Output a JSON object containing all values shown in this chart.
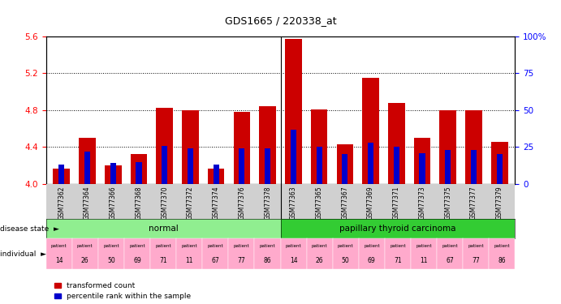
{
  "title": "GDS1665 / 220338_at",
  "samples": [
    "GSM77362",
    "GSM77364",
    "GSM77366",
    "GSM77368",
    "GSM77370",
    "GSM77372",
    "GSM77374",
    "GSM77376",
    "GSM77378",
    "GSM77363",
    "GSM77365",
    "GSM77367",
    "GSM77369",
    "GSM77371",
    "GSM77373",
    "GSM77375",
    "GSM77377",
    "GSM77379"
  ],
  "transformed_count": [
    4.17,
    4.5,
    4.2,
    4.32,
    4.83,
    4.8,
    4.17,
    4.78,
    4.84,
    5.57,
    4.81,
    4.43,
    5.15,
    4.88,
    4.5,
    4.8,
    4.8,
    4.46
  ],
  "percentile_rank_pct": [
    13,
    22,
    14,
    15,
    26,
    24,
    13,
    24,
    24,
    37,
    25,
    20,
    28,
    25,
    21,
    23,
    23,
    20
  ],
  "disease_groups": [
    {
      "label": "normal",
      "start": 0,
      "end": 9,
      "color": "#90ee90"
    },
    {
      "label": "papillary thyroid carcinoma",
      "start": 9,
      "end": 18,
      "color": "#33cc33"
    }
  ],
  "individuals": [
    "14",
    "26",
    "50",
    "69",
    "71",
    "11",
    "67",
    "77",
    "86",
    "14",
    "26",
    "50",
    "69",
    "71",
    "11",
    "67",
    "77",
    "86"
  ],
  "ylim_left": [
    4.0,
    5.6
  ],
  "yticks_left": [
    4.0,
    4.4,
    4.8,
    5.2,
    5.6
  ],
  "ylim_right": [
    0,
    100
  ],
  "yticks_right": [
    0,
    25,
    50,
    75,
    100
  ],
  "bar_color_red": "#cc0000",
  "bar_color_blue": "#0000cc",
  "label_disease_state": "disease state",
  "label_individual": "individual",
  "legend_red": "transformed count",
  "legend_blue": "percentile rank within the sample",
  "base_value": 4.0,
  "xtick_bg": "#d0d0d0"
}
